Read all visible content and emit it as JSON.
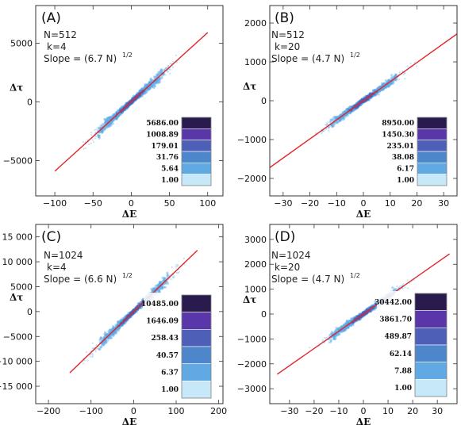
{
  "chart_data": [
    {
      "type": "scatter",
      "panel_label": "(A)",
      "xlabel": "ΔE",
      "ylabel": "Δτ",
      "xlim": [
        -125,
        120
      ],
      "ylim": [
        -8000,
        8200
      ],
      "xticks": [
        {
          "v": -100,
          "t": "−100"
        },
        {
          "v": -50,
          "t": "−50"
        },
        {
          "v": 0,
          "t": "0"
        },
        {
          "v": 50,
          "t": "50"
        },
        {
          "v": 100,
          "t": "100"
        }
      ],
      "yticks": [
        {
          "v": -5000,
          "t": "−5000"
        },
        {
          "v": 0,
          "t": "0"
        },
        {
          "v": 5000,
          "t": "5000"
        }
      ],
      "annotations": [
        "N=512",
        "k=4",
        "Slope = (6.7 N)"
      ],
      "superscript": "1/2",
      "fit_line": {
        "x": [
          -100,
          100
        ],
        "y": [
          -5900,
          5900
        ]
      },
      "cloud_spread": 0.12,
      "colorbar_labels": [
        "5686.00",
        "1008.89",
        "179.01",
        "31.76",
        "5.64",
        "1.00"
      ]
    },
    {
      "type": "scatter",
      "panel_label": "(B)",
      "xlabel": "ΔE",
      "ylabel": "Δτ",
      "xlim": [
        -35,
        35
      ],
      "ylim": [
        -2450,
        2450
      ],
      "xticks": [
        {
          "v": -30,
          "t": "−30"
        },
        {
          "v": -20,
          "t": "−20"
        },
        {
          "v": -10,
          "t": "−10"
        },
        {
          "v": 0,
          "t": "0"
        },
        {
          "v": 10,
          "t": "10"
        },
        {
          "v": 20,
          "t": "20"
        },
        {
          "v": 30,
          "t": "30"
        }
      ],
      "yticks": [
        {
          "v": -2000,
          "t": "−2000"
        },
        {
          "v": -1000,
          "t": "−1000"
        },
        {
          "v": 0,
          "t": "0"
        },
        {
          "v": 1000,
          "t": "1000"
        },
        {
          "v": 2000,
          "t": "2000"
        }
      ],
      "annotations": [
        "N=512",
        "k=20",
        "Slope = (4.7 N)"
      ],
      "superscript": "1/2",
      "fit_line": {
        "x": [
          -35,
          35
        ],
        "y": [
          -1720,
          1720
        ]
      },
      "cloud_spread": 0.09,
      "colorbar_labels": [
        "8950.00",
        "1450.30",
        "235.01",
        "38.08",
        "6.17",
        "1.00"
      ]
    },
    {
      "type": "scatter",
      "panel_label": "(C)",
      "xlabel": "ΔE",
      "ylabel": "Δτ",
      "xlim": [
        -230,
        210
      ],
      "ylim": [
        -18500,
        17500
      ],
      "xticks": [
        {
          "v": -200,
          "t": "−200"
        },
        {
          "v": -100,
          "t": "−100"
        },
        {
          "v": 0,
          "t": "0"
        },
        {
          "v": 100,
          "t": "100"
        },
        {
          "v": 200,
          "t": "200"
        }
      ],
      "yticks": [
        {
          "v": -15000,
          "t": "−15 000"
        },
        {
          "v": -10000,
          "t": "−10 000"
        },
        {
          "v": -5000,
          "t": "−5000"
        },
        {
          "v": 0,
          "t": "0"
        },
        {
          "v": 5000,
          "t": "5000"
        },
        {
          "v": 10000,
          "t": "10 000"
        },
        {
          "v": 15000,
          "t": "15 000"
        }
      ],
      "annotations": [
        "N=1024",
        "k=4",
        "Slope = (6.6 N)"
      ],
      "superscript": "1/2",
      "fit_line": {
        "x": [
          -150,
          150
        ],
        "y": [
          -12300,
          12300
        ]
      },
      "cloud_spread": 0.12,
      "colorbar_labels": [
        "10485.00",
        "1646.09",
        "258.43",
        "40.57",
        "6.37",
        "1.00"
      ]
    },
    {
      "type": "scatter",
      "panel_label": "(D)",
      "xlabel": "ΔE",
      "ylabel": "Δτ",
      "xlim": [
        -38,
        38
      ],
      "ylim": [
        -3600,
        3600
      ],
      "xticks": [
        {
          "v": -30,
          "t": "−30"
        },
        {
          "v": -20,
          "t": "−20"
        },
        {
          "v": -10,
          "t": "−10"
        },
        {
          "v": 0,
          "t": "0"
        },
        {
          "v": 10,
          "t": "10"
        },
        {
          "v": 20,
          "t": "20"
        },
        {
          "v": 30,
          "t": "30"
        }
      ],
      "yticks": [
        {
          "v": -3000,
          "t": "−3000"
        },
        {
          "v": -2000,
          "t": "−2000"
        },
        {
          "v": -1000,
          "t": "−1000"
        },
        {
          "v": 0,
          "t": "0"
        },
        {
          "v": 1000,
          "t": "1000"
        },
        {
          "v": 2000,
          "t": "2000"
        },
        {
          "v": 3000,
          "t": "3000"
        }
      ],
      "annotations": [
        "N=1024",
        "k=20",
        "Slope = (4.7 N)"
      ],
      "superscript": "1/2",
      "fit_line": {
        "x": [
          -35,
          35
        ],
        "y": [
          -2420,
          2420
        ]
      },
      "cloud_spread": 0.1,
      "colorbar_labels": [
        "30442.00",
        "3861.70",
        "489.87",
        "62.14",
        "7.88",
        "1.00"
      ]
    }
  ],
  "colors": {
    "fit_line": "#e0262b",
    "point": "#5aa9e6",
    "colorbar": [
      "#2a1b4f",
      "#5a37a8",
      "#4d5fb6",
      "#4e86cc",
      "#60a9e2",
      "#c7e8f8"
    ]
  }
}
